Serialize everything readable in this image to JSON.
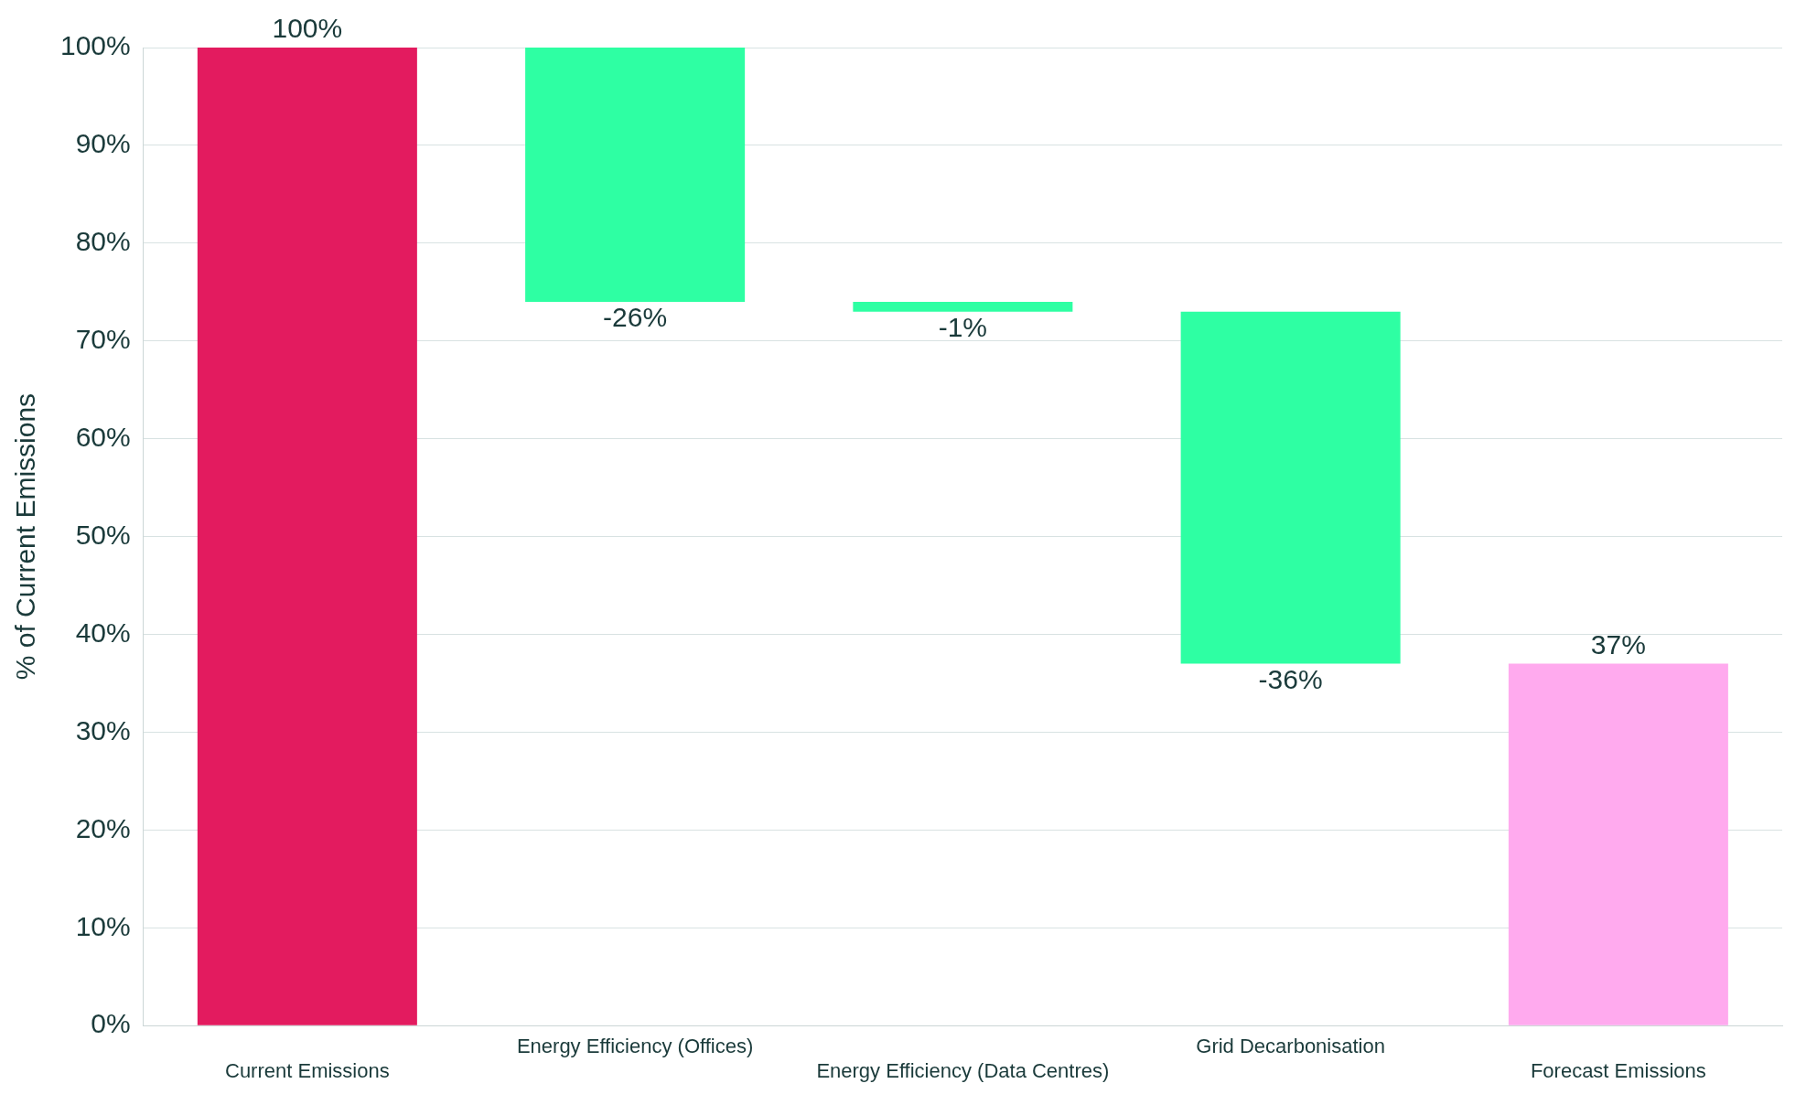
{
  "chart_data": {
    "type": "bar",
    "ylabel": "% of Current Emissions",
    "categories": [
      "Current Emissions",
      "Energy Efficiency (Offices)",
      "Energy Efficiency (Data Centres)",
      "Grid Decarbonisation",
      "Forecast Emissions"
    ],
    "values": [
      100,
      -26,
      -1,
      -36,
      37
    ],
    "base": [
      0,
      100,
      74,
      73,
      0
    ],
    "colors": [
      "#e31b5f",
      "#2effa3",
      "#2effa3",
      "#2effa3",
      "#ffaaee"
    ],
    "value_labels": [
      "100%",
      "-26%",
      "-1%",
      "-36%",
      "37%"
    ],
    "ylim": [
      0,
      100
    ],
    "yticks": [
      {
        "value": 0,
        "label": "0%"
      },
      {
        "value": 10,
        "label": "10%"
      },
      {
        "value": 20,
        "label": "20%"
      },
      {
        "value": 30,
        "label": "30%"
      },
      {
        "value": 40,
        "label": "40%"
      },
      {
        "value": 50,
        "label": "50%"
      },
      {
        "value": 60,
        "label": "60%"
      },
      {
        "value": 70,
        "label": "70%"
      },
      {
        "value": 80,
        "label": "80%"
      },
      {
        "value": 90,
        "label": "90%"
      },
      {
        "value": 100,
        "label": "100%"
      }
    ],
    "grid": "y"
  }
}
